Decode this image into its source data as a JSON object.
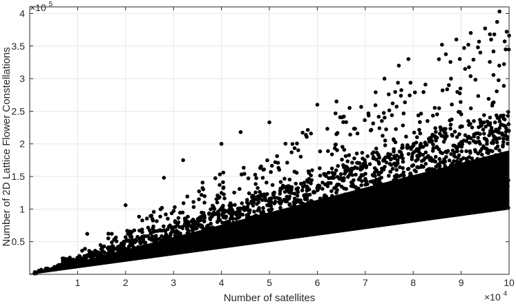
{
  "chart_data": {
    "type": "scatter",
    "title": "",
    "xlabel": "Number of satellites",
    "ylabel": "Number of 2D Lattice Flower Constellations",
    "x_exponent_label": "×10",
    "x_exponent_power": "4",
    "y_exponent_label": "×10",
    "y_exponent_power": "5",
    "xlim": [
      0,
      100000
    ],
    "ylim": [
      0,
      410000
    ],
    "x_ticks": [
      10000,
      20000,
      30000,
      40000,
      50000,
      60000,
      70000,
      80000,
      90000,
      100000
    ],
    "x_tick_labels": [
      "1",
      "2",
      "3",
      "4",
      "5",
      "6",
      "7",
      "8",
      "9",
      "10"
    ],
    "y_ticks": [
      50000,
      100000,
      150000,
      200000,
      250000,
      300000,
      350000,
      400000
    ],
    "y_tick_labels": [
      "0.5",
      "1",
      "1.5",
      "2",
      "2.5",
      "3",
      "3.5",
      "4"
    ],
    "grid": true,
    "marker_color": "#000000",
    "point_cloud": {
      "lower_bound_slope": 1.0,
      "dense_upper_slope": 2.5,
      "max_upper_slope": 3.9,
      "notes_visible": false
    },
    "outliers": [
      {
        "x": 98000,
        "y": 403000
      },
      {
        "x": 97500,
        "y": 387000
      },
      {
        "x": 95000,
        "y": 377000
      },
      {
        "x": 92000,
        "y": 370000
      },
      {
        "x": 96000,
        "y": 368000
      },
      {
        "x": 99500,
        "y": 372000
      },
      {
        "x": 86000,
        "y": 352000
      },
      {
        "x": 89000,
        "y": 360000
      },
      {
        "x": 91500,
        "y": 352000
      },
      {
        "x": 100000,
        "y": 366000
      },
      {
        "x": 93500,
        "y": 348000
      },
      {
        "x": 94000,
        "y": 340000
      },
      {
        "x": 79000,
        "y": 330000
      },
      {
        "x": 74000,
        "y": 300000
      },
      {
        "x": 77000,
        "y": 320000
      },
      {
        "x": 64000,
        "y": 265000
      },
      {
        "x": 60000,
        "y": 260000
      },
      {
        "x": 50000,
        "y": 233000
      },
      {
        "x": 44000,
        "y": 218000
      },
      {
        "x": 40000,
        "y": 200000
      },
      {
        "x": 32000,
        "y": 175000
      },
      {
        "x": 28000,
        "y": 148000
      },
      {
        "x": 20000,
        "y": 106000
      },
      {
        "x": 12000,
        "y": 62000
      }
    ]
  }
}
